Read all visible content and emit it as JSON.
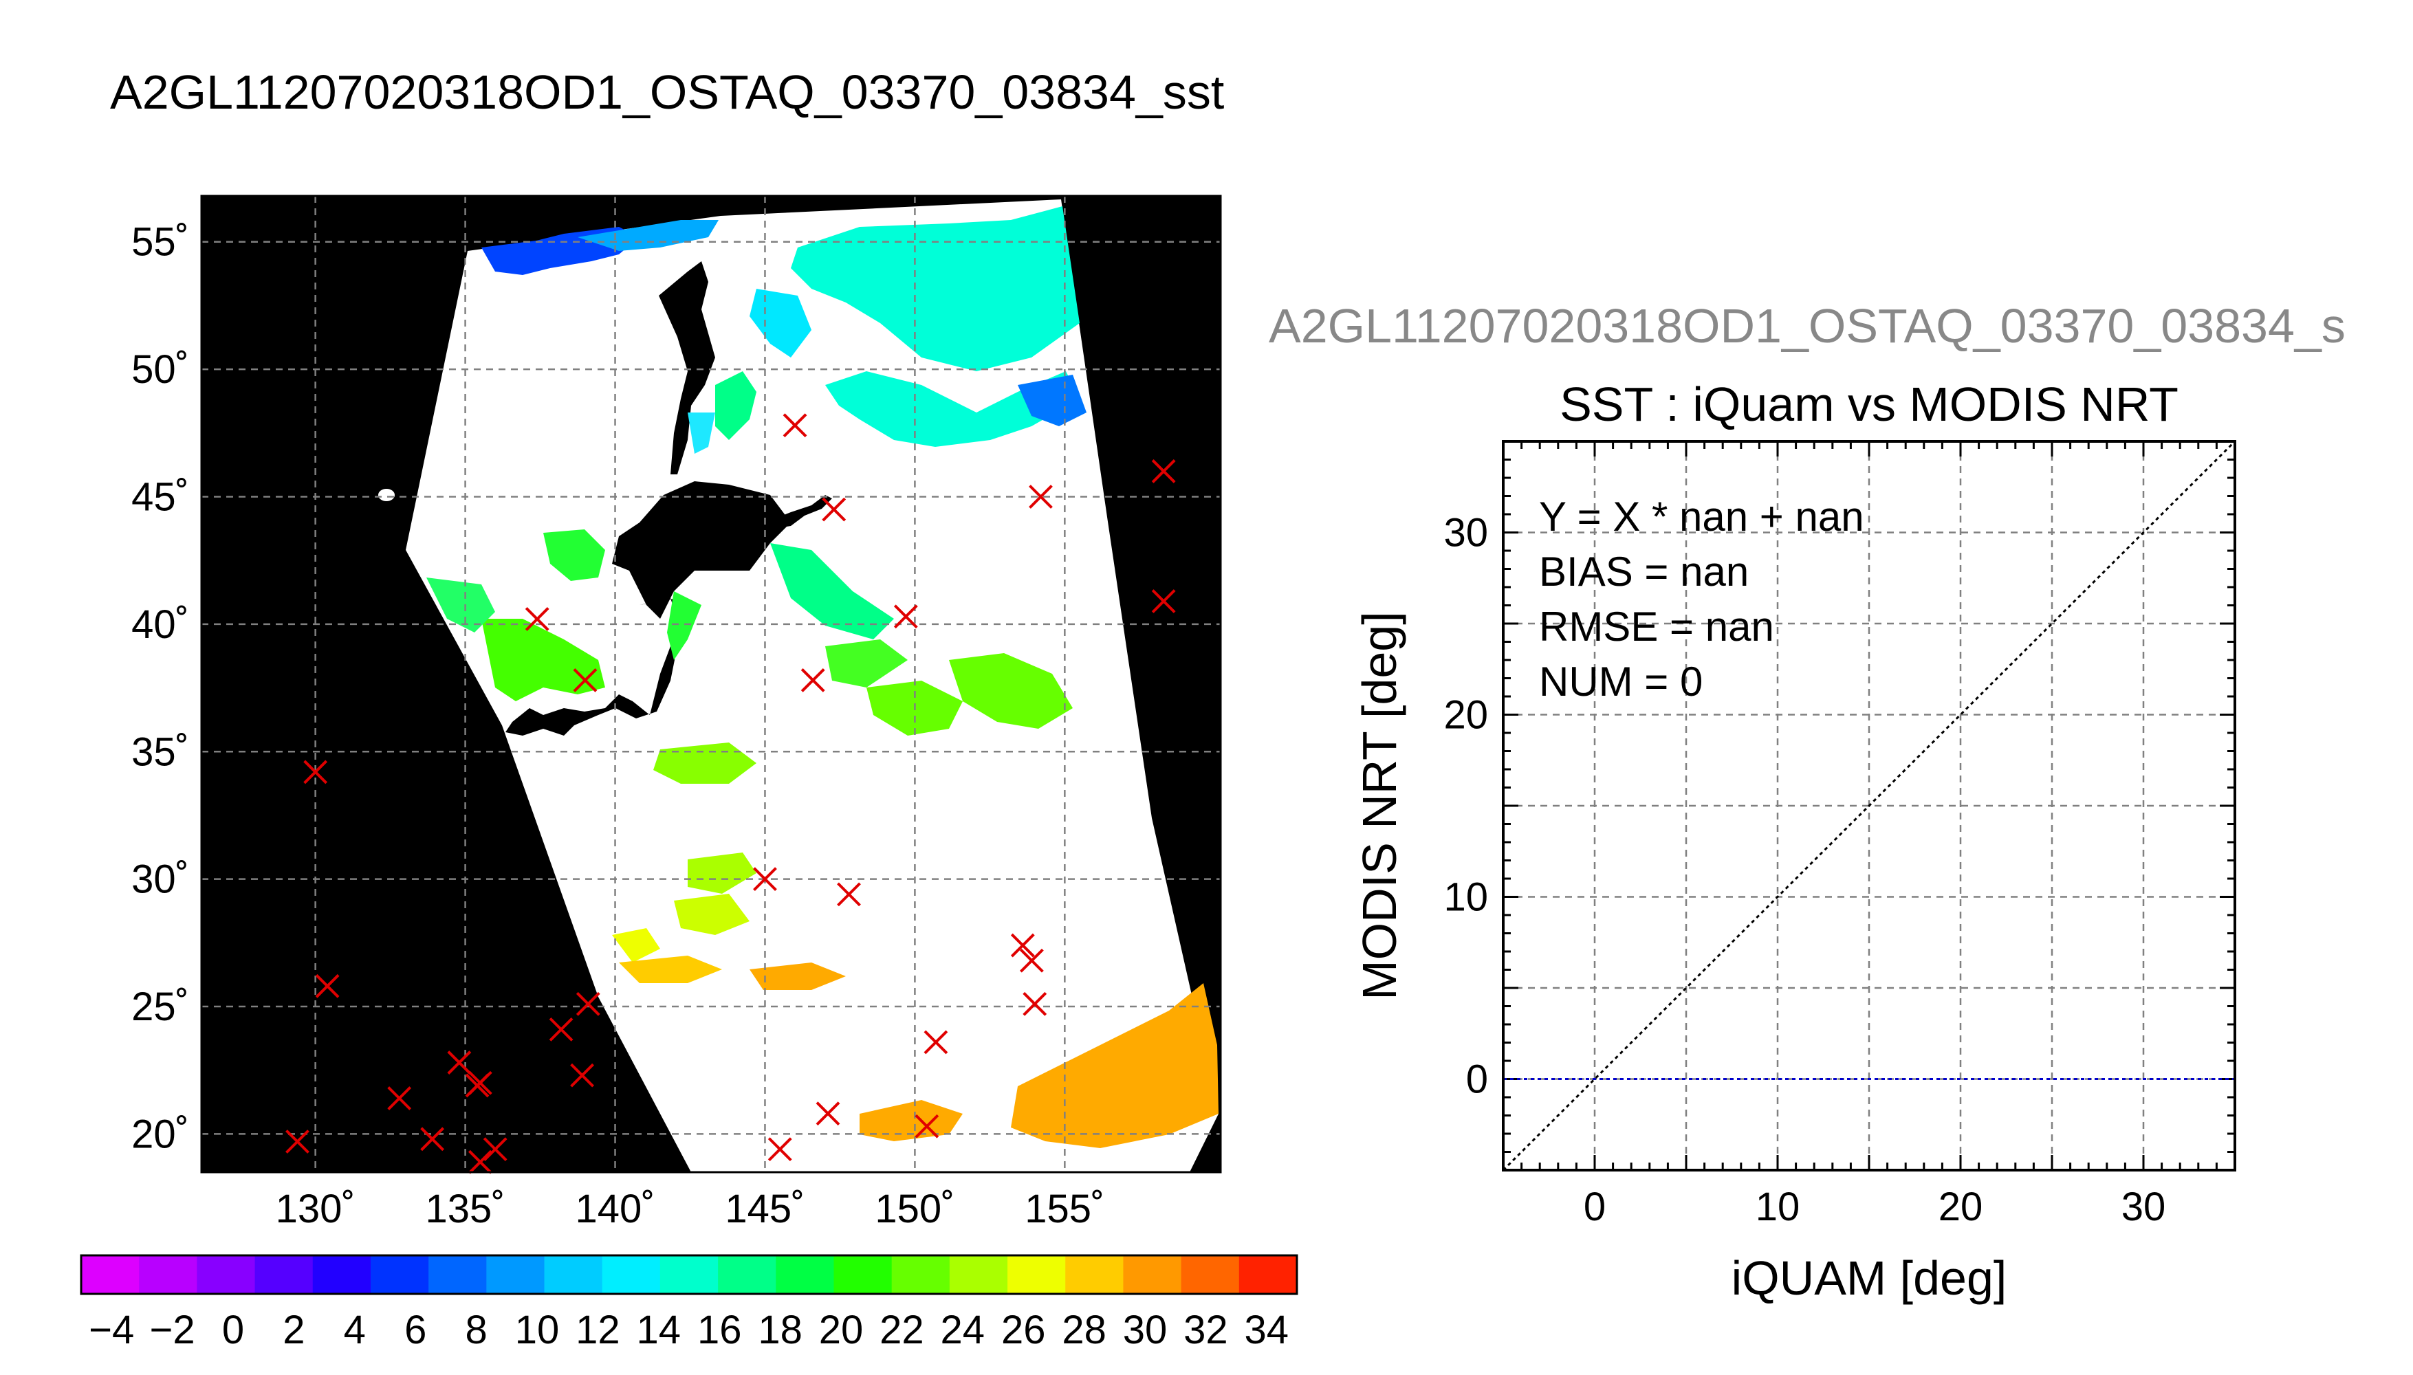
{
  "title": "A2GL11207020318OD1_OSTAQ_03370_03834_sst",
  "title_right": "A2GL11207020318OD1_OSTAQ_03370_03834_s",
  "chart_data": [
    {
      "type": "map",
      "title": "",
      "xlim": [
        126.2,
        160.2
      ],
      "ylim": [
        18.5,
        56.8
      ],
      "x_ticks": [
        130,
        135,
        140,
        145,
        150,
        155
      ],
      "x_tick_labels": [
        "130˚",
        "135˚",
        "140˚",
        "145˚",
        "150˚",
        "155˚"
      ],
      "y_ticks": [
        20,
        25,
        30,
        35,
        40,
        45,
        50,
        55
      ],
      "y_tick_labels": [
        "20˚",
        "25˚",
        "30˚",
        "35˚",
        "40˚",
        "45˚",
        "50˚",
        "55˚"
      ],
      "grid": true,
      "background": "#000000",
      "swath_color": "#ffffff",
      "marker": "x",
      "marker_color": "#e00000",
      "points": [
        [
          129.4,
          19.7
        ],
        [
          130.0,
          34.2
        ],
        [
          130.4,
          25.8
        ],
        [
          132.8,
          21.4
        ],
        [
          133.9,
          19.8
        ],
        [
          134.8,
          22.8
        ],
        [
          135.4,
          21.9
        ],
        [
          135.5,
          22.0
        ],
        [
          135.5,
          18.9
        ],
        [
          136.0,
          19.4
        ],
        [
          137.4,
          40.2
        ],
        [
          138.2,
          24.1
        ],
        [
          138.9,
          22.3
        ],
        [
          139.0,
          37.8
        ],
        [
          139.1,
          25.1
        ],
        [
          145.0,
          30.0
        ],
        [
          145.5,
          19.4
        ],
        [
          146.0,
          47.8
        ],
        [
          146.6,
          37.8
        ],
        [
          147.1,
          20.8
        ],
        [
          147.3,
          44.5
        ],
        [
          147.8,
          29.4
        ],
        [
          149.7,
          40.3
        ],
        [
          150.4,
          20.3
        ],
        [
          150.7,
          23.6
        ],
        [
          153.6,
          27.4
        ],
        [
          153.9,
          26.8
        ],
        [
          154.0,
          25.1
        ],
        [
          154.2,
          45.0
        ],
        [
          158.3,
          46.0
        ],
        [
          158.3,
          40.9
        ]
      ]
    },
    {
      "type": "colorbar",
      "min": -5,
      "max": 35,
      "step": 2,
      "tick_labels": [
        "−4",
        "−2",
        "0",
        "2",
        "4",
        "6",
        "8",
        "10",
        "12",
        "14",
        "16",
        "18",
        "20",
        "22",
        "24",
        "26",
        "28",
        "30",
        "32",
        "34"
      ],
      "tick_values": [
        -4,
        -2,
        0,
        2,
        4,
        6,
        8,
        10,
        12,
        14,
        16,
        18,
        20,
        22,
        24,
        26,
        28,
        30,
        32,
        34
      ],
      "colors": [
        "#dd00ff",
        "#b800ff",
        "#8800ff",
        "#5500ff",
        "#2200ff",
        "#0033ff",
        "#0066ff",
        "#0099ff",
        "#00ccff",
        "#00eeff",
        "#00ffcc",
        "#00ff88",
        "#00ff44",
        "#22ff00",
        "#66ff00",
        "#aaff00",
        "#eeff00",
        "#ffcc00",
        "#ff9900",
        "#ff6600",
        "#ff2200"
      ]
    },
    {
      "type": "scatter",
      "title": "SST : iQuam vs MODIS NRT",
      "xlabel": "iQUAM [deg]",
      "ylabel": "MODIS NRT [deg]",
      "xlim": [
        -5,
        35
      ],
      "ylim": [
        -5,
        35
      ],
      "x_ticks": [
        0,
        10,
        20,
        30
      ],
      "y_ticks": [
        0,
        10,
        20,
        30
      ],
      "grid": true,
      "stats": [
        "Y = X * nan + nan",
        "BIAS = nan",
        "RMSE = nan",
        "NUM = 0"
      ],
      "lines": [
        {
          "kind": "identity",
          "from": [
            -5,
            -5
          ],
          "to": [
            35,
            35
          ],
          "color": "#000000",
          "style": "dotted"
        },
        {
          "kind": "fit",
          "from": [
            -5,
            0
          ],
          "to": [
            35,
            0
          ],
          "color": "#0000cc",
          "style": "dotted"
        }
      ],
      "points": []
    }
  ]
}
